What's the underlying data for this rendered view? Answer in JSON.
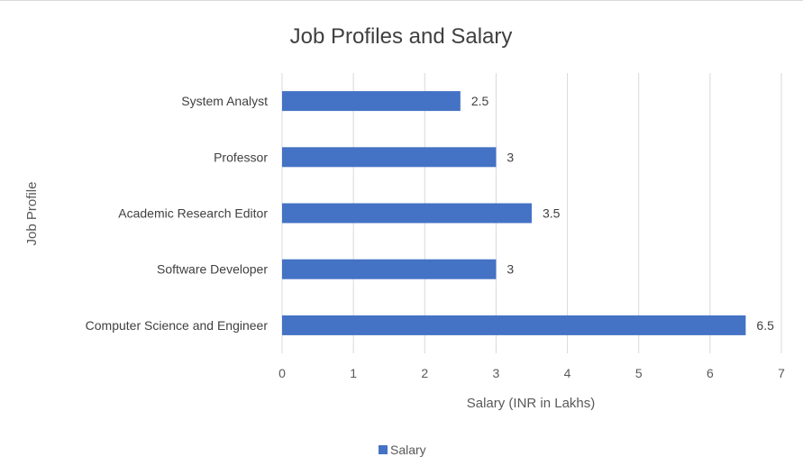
{
  "chart_data": {
    "type": "bar",
    "orientation": "horizontal",
    "title": "Job Profiles and Salary",
    "xlabel": "Salary (INR in Lakhs)",
    "ylabel": "Job Profile",
    "categories": [
      "System Analyst",
      "Professor",
      "Academic Research Editor",
      "Software Developer",
      "Computer Science and Engineer"
    ],
    "series": [
      {
        "name": "Salary",
        "values": [
          2.5,
          3,
          3.5,
          3,
          6.5
        ]
      }
    ],
    "xlim": [
      0,
      7
    ],
    "xticks": [
      0,
      1,
      2,
      3,
      4,
      5,
      6,
      7
    ],
    "grid": "vertical",
    "legend": "bottom",
    "bar_color": "#4472c4",
    "grid_color": "#d9d9d9"
  }
}
